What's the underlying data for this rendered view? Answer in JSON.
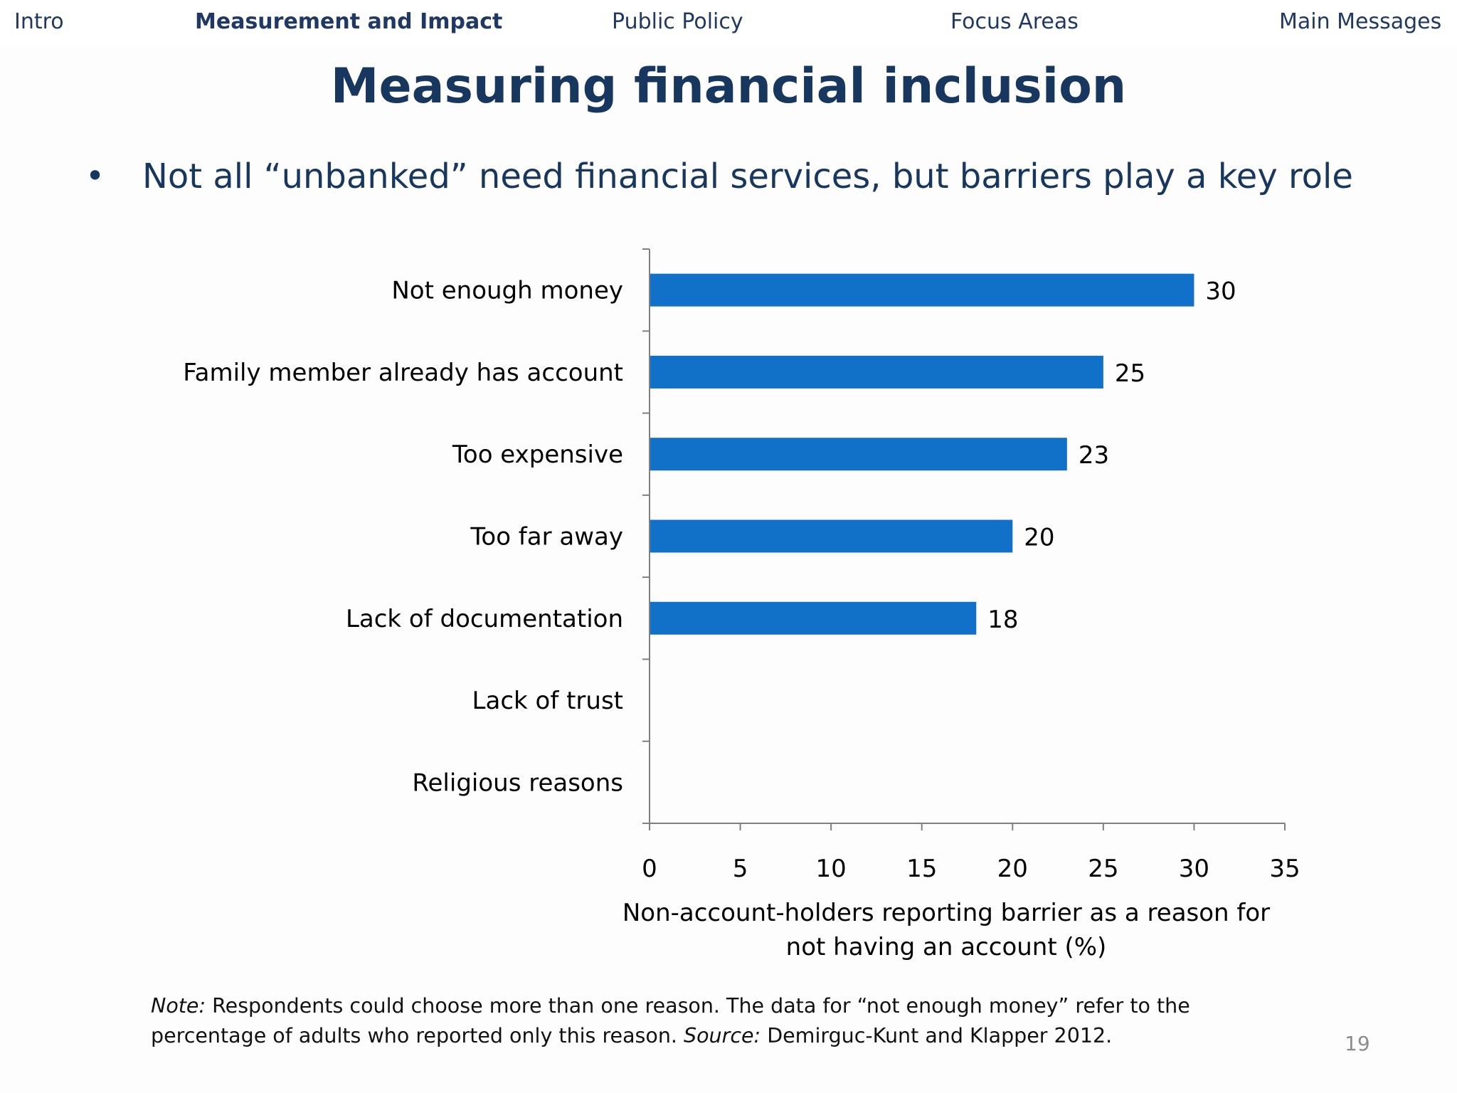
{
  "nav": {
    "items": [
      {
        "label": "Intro"
      },
      {
        "label": "Measurement and Impact"
      },
      {
        "label": "Public Policy"
      },
      {
        "label": "Focus Areas"
      },
      {
        "label": "Main Messages"
      }
    ]
  },
  "slide": {
    "title": "Measuring financial inclusion",
    "bullet_marker": "•",
    "bullet": "Not all “unbanked” need financial services, but barriers play a key role",
    "note": {
      "note_label": "Note:",
      "note_text": " Respondents could choose more than one reason. The data for “not enough money” refer to the percentage of adults who reported only this reason. ",
      "source_label": "Source:",
      "source_text": " Demirguc-Kunt and Klapper 2012."
    },
    "page_number": "19"
  },
  "colors": {
    "bar": "#1170c8",
    "title": "#17375e",
    "axis": "#7f7f7f"
  },
  "chart_data": {
    "type": "bar",
    "orientation": "horizontal",
    "categories": [
      "Not enough money",
      "Family member already has account",
      "Too expensive",
      "Too far away",
      "Lack of documentation",
      "Lack of trust",
      "Religious reasons"
    ],
    "values": [
      30,
      25,
      23,
      20,
      18,
      null,
      null
    ],
    "data_labels": [
      "30",
      "25",
      "23",
      "20",
      "18",
      "",
      ""
    ],
    "xlim": [
      0,
      35
    ],
    "xticks": [
      0,
      5,
      10,
      15,
      20,
      25,
      30,
      35
    ],
    "xlabel_lines": [
      "Non-account-holders reporting barrier as a reason for",
      "not having an account (%)"
    ],
    "grid": false,
    "legend": "none"
  }
}
